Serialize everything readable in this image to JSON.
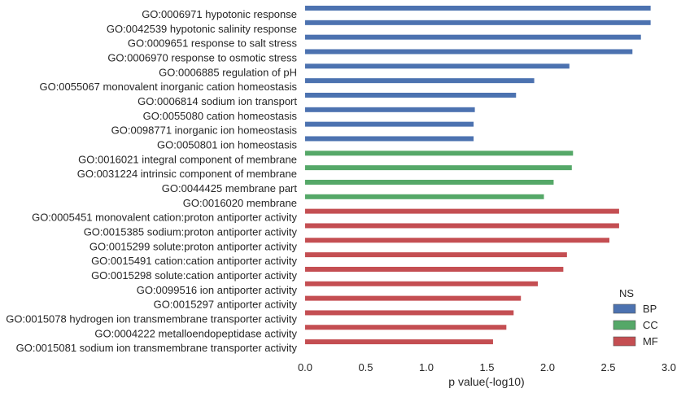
{
  "chart_data": {
    "type": "bar",
    "orientation": "horizontal",
    "xlabel": "p value(-log10)",
    "xlim": [
      0.0,
      3.0
    ],
    "xticks": [
      "0.0",
      "0.5",
      "1.0",
      "1.5",
      "2.0",
      "2.5",
      "3.0"
    ],
    "grid": false,
    "legend": {
      "title": "NS",
      "placement": "bottom-right",
      "entries": [
        {
          "name": "BP",
          "color": "#4c72b0"
        },
        {
          "name": "CC",
          "color": "#55a868"
        },
        {
          "name": "MF",
          "color": "#c44e52"
        }
      ]
    },
    "categories": [
      {
        "label": "GO:0006971 hypotonic response",
        "value": 2.85,
        "group": "BP"
      },
      {
        "label": "GO:0042539 hypotonic salinity response",
        "value": 2.85,
        "group": "BP"
      },
      {
        "label": "GO:0009651 response to salt stress",
        "value": 2.77,
        "group": "BP"
      },
      {
        "label": "GO:0006970 response to osmotic stress",
        "value": 2.7,
        "group": "BP"
      },
      {
        "label": "GO:0006885 regulation of pH",
        "value": 2.18,
        "group": "BP"
      },
      {
        "label": "GO:0055067 monovalent inorganic cation homeostasis",
        "value": 1.89,
        "group": "BP"
      },
      {
        "label": "GO:0006814 sodium ion transport",
        "value": 1.74,
        "group": "BP"
      },
      {
        "label": "GO:0055080 cation homeostasis",
        "value": 1.4,
        "group": "BP"
      },
      {
        "label": "GO:0098771 inorganic ion homeostasis",
        "value": 1.39,
        "group": "BP"
      },
      {
        "label": "GO:0050801 ion homeostasis",
        "value": 1.39,
        "group": "BP"
      },
      {
        "label": "GO:0016021 integral component of membrane",
        "value": 2.21,
        "group": "CC"
      },
      {
        "label": "GO:0031224 intrinsic component of membrane",
        "value": 2.2,
        "group": "CC"
      },
      {
        "label": "GO:0044425 membrane part",
        "value": 2.05,
        "group": "CC"
      },
      {
        "label": "GO:0016020 membrane",
        "value": 1.97,
        "group": "CC"
      },
      {
        "label": "GO:0005451 monovalent cation:proton antiporter activity",
        "value": 2.59,
        "group": "MF"
      },
      {
        "label": "GO:0015385 sodium:proton antiporter activity",
        "value": 2.59,
        "group": "MF"
      },
      {
        "label": "GO:0015299 solute:proton antiporter activity",
        "value": 2.51,
        "group": "MF"
      },
      {
        "label": "GO:0015491 cation:cation antiporter activity",
        "value": 2.16,
        "group": "MF"
      },
      {
        "label": "GO:0015298 solute:cation antiporter activity",
        "value": 2.13,
        "group": "MF"
      },
      {
        "label": "GO:0099516 ion antiporter activity",
        "value": 1.92,
        "group": "MF"
      },
      {
        "label": "GO:0015297 antiporter activity",
        "value": 1.78,
        "group": "MF"
      },
      {
        "label": "GO:0015078 hydrogen ion transmembrane transporter activity",
        "value": 1.72,
        "group": "MF"
      },
      {
        "label": "GO:0004222 metalloendopeptidase activity",
        "value": 1.66,
        "group": "MF"
      },
      {
        "label": "GO:0015081 sodium ion transmembrane transporter activity",
        "value": 1.55,
        "group": "MF"
      }
    ]
  }
}
